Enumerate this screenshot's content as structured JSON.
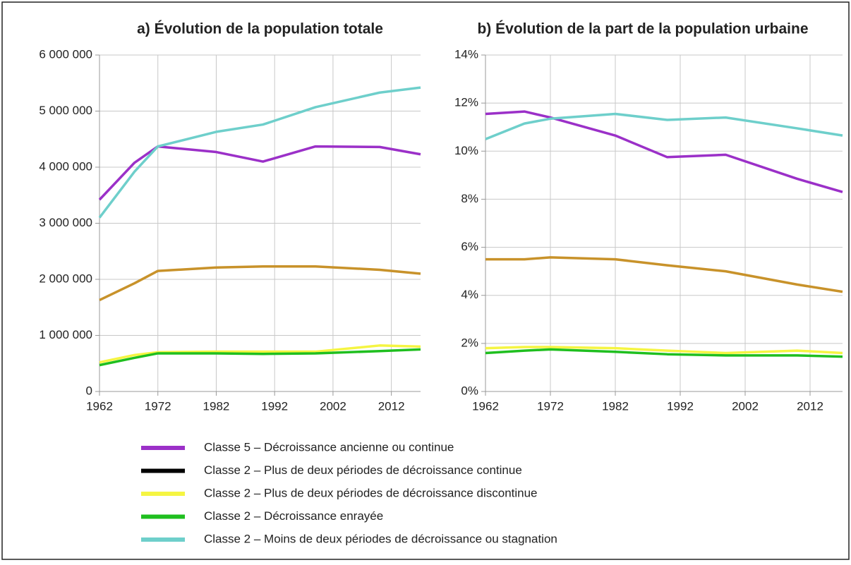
{
  "chart_data": [
    {
      "type": "line",
      "title": "a)  Évolution de la population totale",
      "x": [
        1962,
        1968,
        1972,
        1982,
        1990,
        1999,
        2010,
        2017
      ],
      "xlim": [
        1962,
        2017
      ],
      "xticks": [
        1962,
        1972,
        1982,
        1992,
        2002,
        2012
      ],
      "ylim": [
        0,
        6000000
      ],
      "yticks": [
        0,
        {
          "value": 1000000,
          "label": "1 000 000"
        },
        {
          "value": 2000000,
          "label": "2 000 000"
        },
        {
          "value": 3000000,
          "label": "3 000 000"
        },
        {
          "value": 4000000,
          "label": "4 000 000"
        },
        {
          "value": 5000000,
          "label": "5 000 000"
        },
        {
          "value": 6000000,
          "label": "6 000 000"
        }
      ],
      "grid": true,
      "series": [
        {
          "name": "Classe 5 – Décroissance ancienne ou continue",
          "color": "#9b30c8",
          "values": [
            3420000,
            4080000,
            4370000,
            4270000,
            4100000,
            4370000,
            4360000,
            4230000
          ]
        },
        {
          "name": "Classe 2 – Plus de deux périodes de décroissance continue",
          "color": "#000000",
          "line_color": "#c8922a",
          "values": [
            1630000,
            1930000,
            2150000,
            2210000,
            2230000,
            2230000,
            2170000,
            2100000
          ]
        },
        {
          "name": "Classe 2 – Plus de deux périodes de décroissance discontinue",
          "color": "#f5f542",
          "values": [
            520000,
            650000,
            700000,
            710000,
            710000,
            710000,
            820000,
            800000
          ]
        },
        {
          "name": "Classe 2 – Décroissance enrayée",
          "color": "#1fbf1f",
          "values": [
            470000,
            600000,
            680000,
            680000,
            670000,
            680000,
            720000,
            750000
          ]
        },
        {
          "name": "Classe 2 – Moins de deux périodes de décroissance ou stagnation",
          "color": "#6ecfcb",
          "values": [
            3100000,
            3920000,
            4370000,
            4630000,
            4760000,
            5070000,
            5330000,
            5420000
          ]
        }
      ]
    },
    {
      "type": "line",
      "title": "b)  Évolution de la part de la population urbaine",
      "x": [
        1962,
        1968,
        1972,
        1982,
        1990,
        1999,
        2010,
        2017
      ],
      "xlim": [
        1962,
        2017
      ],
      "xticks": [
        1962,
        1972,
        1982,
        1992,
        2002,
        2012
      ],
      "ylim": [
        0,
        14
      ],
      "yticks": [
        {
          "value": 0,
          "label": "0%"
        },
        {
          "value": 2,
          "label": "2%"
        },
        {
          "value": 4,
          "label": "4%"
        },
        {
          "value": 6,
          "label": "6%"
        },
        {
          "value": 8,
          "label": "8%"
        },
        {
          "value": 10,
          "label": "10%"
        },
        {
          "value": 12,
          "label": "12%"
        },
        {
          "value": 14,
          "label": "14%"
        }
      ],
      "grid": true,
      "series": [
        {
          "color": "#9b30c8",
          "values": [
            11.55,
            11.65,
            11.4,
            10.65,
            9.75,
            9.85,
            8.85,
            8.3
          ]
        },
        {
          "color": "#000000",
          "line_color": "#c8922a",
          "values": [
            5.5,
            5.5,
            5.58,
            5.5,
            5.25,
            5.0,
            4.45,
            4.15
          ]
        },
        {
          "color": "#f5f542",
          "values": [
            1.8,
            1.85,
            1.85,
            1.8,
            1.7,
            1.6,
            1.7,
            1.6
          ]
        },
        {
          "color": "#1fbf1f",
          "values": [
            1.6,
            1.7,
            1.75,
            1.65,
            1.55,
            1.5,
            1.5,
            1.45
          ]
        },
        {
          "color": "#6ecfcb",
          "values": [
            10.5,
            11.15,
            11.35,
            11.55,
            11.3,
            11.4,
            10.95,
            10.65
          ]
        }
      ]
    }
  ]
}
